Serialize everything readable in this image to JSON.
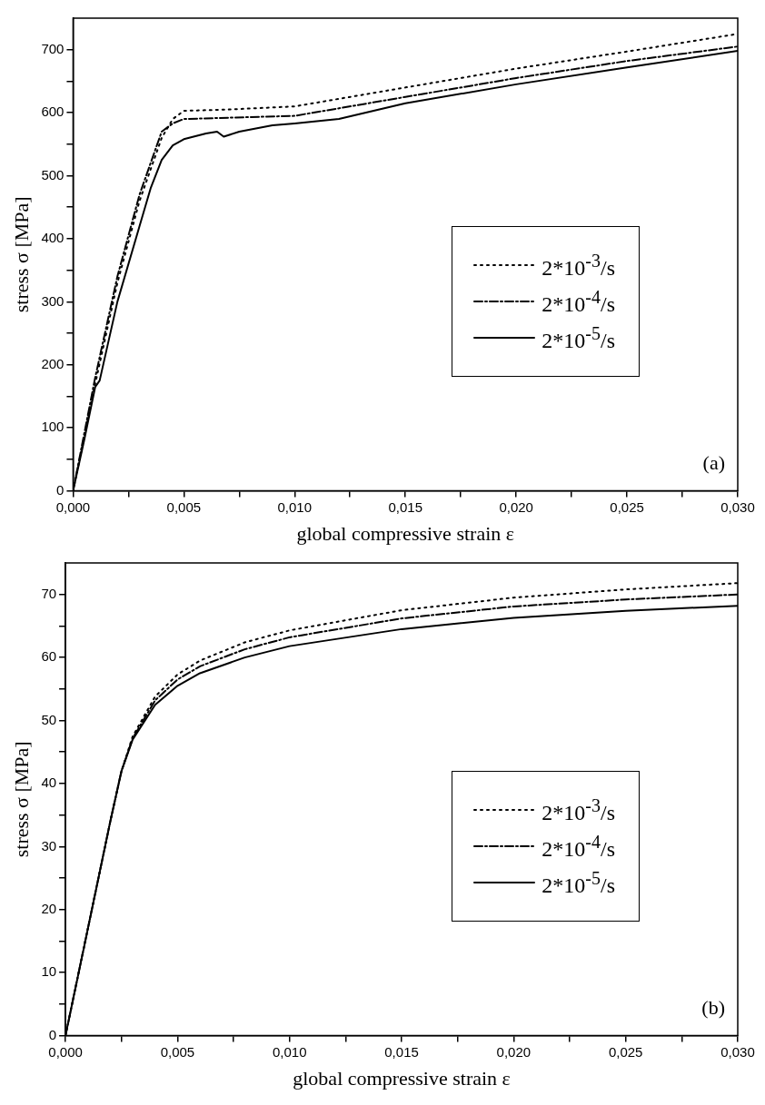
{
  "chart_data": [
    {
      "type": "line",
      "xlabel": "global compressive strain ε",
      "ylabel": "stress σ [MPa]",
      "annotations": [
        "(a)"
      ],
      "legend": "right",
      "grid": false,
      "xlim": [
        0,
        0.03
      ],
      "ylim": [
        0,
        750
      ],
      "xticks": [
        {
          "value": 0,
          "label": "0,000"
        },
        {
          "value": 0.0025,
          "label": null
        },
        {
          "value": 0.005,
          "label": "0,005"
        },
        {
          "value": 0.0075,
          "label": null
        },
        {
          "value": 0.01,
          "label": "0,010"
        },
        {
          "value": 0.0125,
          "label": null
        },
        {
          "value": 0.015,
          "label": "0,015"
        },
        {
          "value": 0.0175,
          "label": null
        },
        {
          "value": 0.02,
          "label": "0,020"
        },
        {
          "value": 0.0225,
          "label": null
        },
        {
          "value": 0.025,
          "label": "0,025"
        },
        {
          "value": 0.0275,
          "label": null
        },
        {
          "value": 0.03,
          "label": "0,030"
        }
      ],
      "yticks": [
        0,
        {
          "value": 50,
          "label": null
        },
        100,
        {
          "value": 150,
          "label": null
        },
        200,
        {
          "value": 250,
          "label": null
        },
        300,
        {
          "value": 350,
          "label": null
        },
        400,
        {
          "value": 450,
          "label": null
        },
        500,
        {
          "value": 550,
          "label": null
        },
        600,
        {
          "value": 650,
          "label": null
        },
        700
      ],
      "series": [
        {
          "name": "2*10$^{-3}$/s",
          "color": "#000000",
          "line_style": "dotted",
          "x": [
            0,
            0.001,
            0.002,
            0.003,
            0.004,
            0.0045,
            0.005,
            0.007,
            0.01,
            0.015,
            0.02,
            0.025,
            0.03
          ],
          "values": [
            0,
            170,
            330,
            460,
            560,
            590,
            603,
            605,
            610,
            640,
            670,
            697,
            725
          ]
        },
        {
          "name": "2*10$^{-4}$/s",
          "color": "#000000",
          "line_style": "dashed",
          "x": [
            0,
            0.001,
            0.002,
            0.003,
            0.004,
            0.0045,
            0.005,
            0.007,
            0.01,
            0.015,
            0.02,
            0.025,
            0.03
          ],
          "values": [
            0,
            180,
            340,
            470,
            570,
            583,
            590,
            592,
            595,
            625,
            655,
            682,
            705
          ]
        },
        {
          "name": "2*10$^{-5}$/s",
          "color": "#000000",
          "line_style": "solid",
          "x": [
            0,
            0.0005,
            0.001,
            0.0012,
            0.002,
            0.003,
            0.0035,
            0.004,
            0.0045,
            0.005,
            0.006,
            0.0065,
            0.0068,
            0.0075,
            0.009,
            0.01,
            0.012,
            0.015,
            0.02,
            0.025,
            0.03
          ],
          "values": [
            0,
            80,
            165,
            175,
            300,
            420,
            480,
            525,
            548,
            558,
            567,
            570,
            562,
            570,
            580,
            583,
            590,
            615,
            645,
            672,
            698
          ]
        }
      ]
    },
    {
      "type": "line",
      "xlabel": "global compressive strain ε",
      "ylabel": "stress σ [MPa]",
      "annotations": [
        "(b)"
      ],
      "legend": "right",
      "grid": false,
      "xlim": [
        0,
        0.03
      ],
      "ylim": [
        0,
        75
      ],
      "xticks": [
        {
          "value": 0,
          "label": "0,000"
        },
        {
          "value": 0.0025,
          "label": null
        },
        {
          "value": 0.005,
          "label": "0,005"
        },
        {
          "value": 0.0075,
          "label": null
        },
        {
          "value": 0.01,
          "label": "0,010"
        },
        {
          "value": 0.0125,
          "label": null
        },
        {
          "value": 0.015,
          "label": "0,015"
        },
        {
          "value": 0.0175,
          "label": null
        },
        {
          "value": 0.02,
          "label": "0,020"
        },
        {
          "value": 0.0225,
          "label": null
        },
        {
          "value": 0.025,
          "label": "0,025"
        },
        {
          "value": 0.0275,
          "label": null
        },
        {
          "value": 0.03,
          "label": "0,030"
        }
      ],
      "yticks": [
        0,
        {
          "value": 5,
          "label": null
        },
        10,
        {
          "value": 15,
          "label": null
        },
        20,
        {
          "value": 25,
          "label": null
        },
        30,
        {
          "value": 35,
          "label": null
        },
        40,
        {
          "value": 45,
          "label": null
        },
        50,
        {
          "value": 55,
          "label": null
        },
        60,
        {
          "value": 65,
          "label": null
        },
        70
      ],
      "series": [
        {
          "name": "2*10$^{-3}$/s",
          "color": "#000000",
          "line_style": "dotted",
          "x": [
            0,
            0.001,
            0.002,
            0.0025,
            0.003,
            0.004,
            0.005,
            0.006,
            0.008,
            0.01,
            0.015,
            0.02,
            0.025,
            0.03
          ],
          "values": [
            0,
            17,
            34,
            42,
            47.5,
            53.8,
            57.3,
            59.5,
            62.4,
            64.3,
            67.5,
            69.5,
            70.8,
            71.8
          ]
        },
        {
          "name": "2*10$^{-4}$/s",
          "color": "#000000",
          "line_style": "dashed",
          "x": [
            0,
            0.001,
            0.002,
            0.0025,
            0.003,
            0.004,
            0.005,
            0.006,
            0.008,
            0.01,
            0.015,
            0.02,
            0.025,
            0.03
          ],
          "values": [
            0,
            17,
            34,
            42,
            47.2,
            53.2,
            56.5,
            58.6,
            61.3,
            63.2,
            66.2,
            68.1,
            69.2,
            70
          ]
        },
        {
          "name": "2*10$^{-5}$/s",
          "color": "#000000",
          "line_style": "solid",
          "x": [
            0,
            0.001,
            0.002,
            0.0025,
            0.003,
            0.004,
            0.005,
            0.006,
            0.008,
            0.01,
            0.015,
            0.02,
            0.025,
            0.03
          ],
          "values": [
            0,
            17,
            34,
            42,
            47,
            52.5,
            55.5,
            57.5,
            60,
            61.8,
            64.5,
            66.3,
            67.4,
            68.2
          ]
        }
      ]
    }
  ]
}
